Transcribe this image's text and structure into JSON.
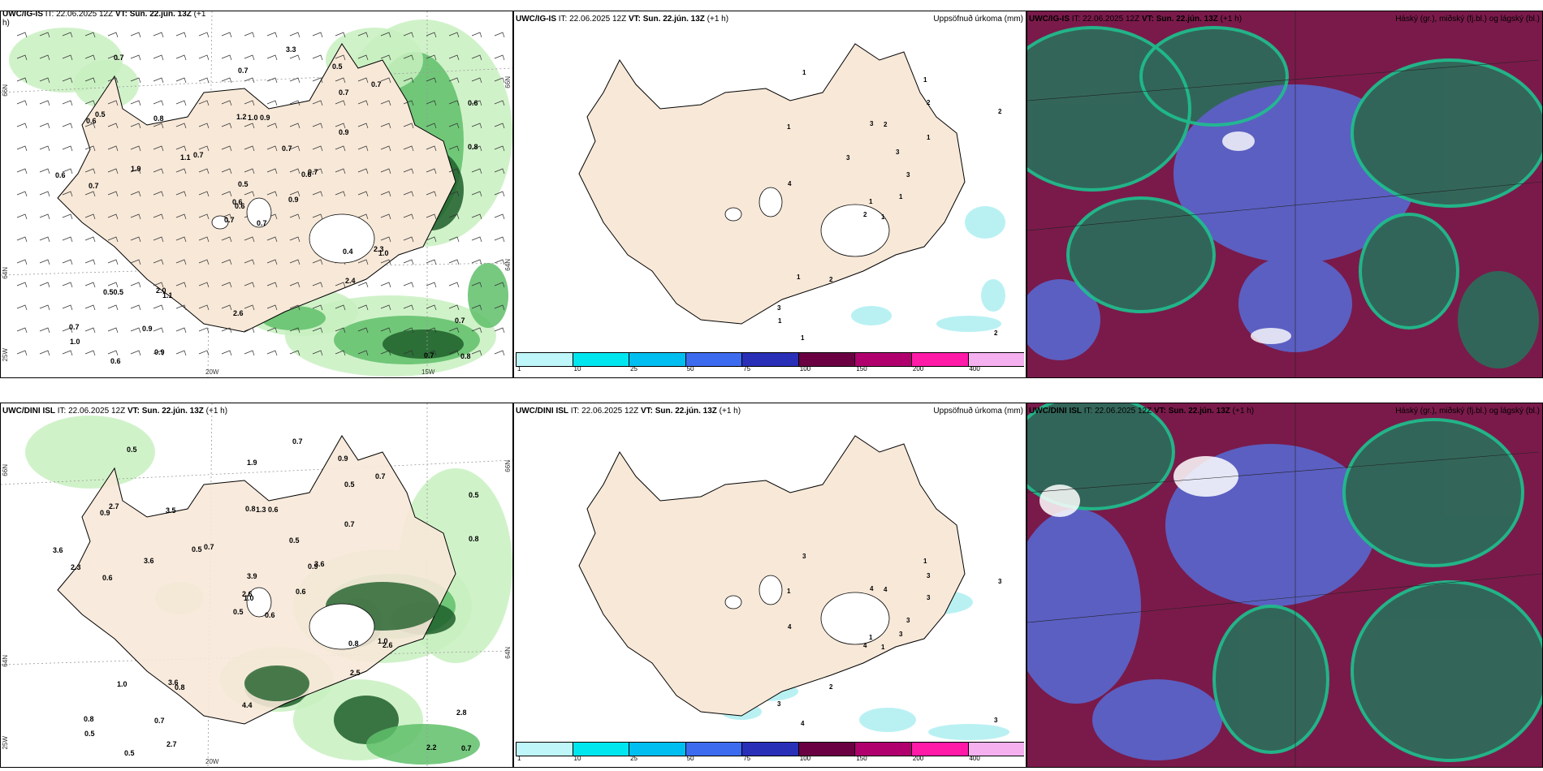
{
  "rows": [
    {
      "model_title": "UWC/IG-IS",
      "left": {
        "title_prefix": "UWC/IG-IS",
        "title_it": "IT: 22.06.2025 12Z",
        "title_vt": "VT: Sun. 22.jún. 13Z",
        "title_lead": "(+1",
        "title_lead2": "h)"
      },
      "middle": {
        "title_prefix": "UWC/IG-IS",
        "title_it": "IT: 22.06.2025 12Z",
        "title_vt": "VT: Sun. 22.jún. 13Z",
        "title_lead": "(+1 h)",
        "right_label": "Uppsöfnuð úrkoma (mm)"
      },
      "right": {
        "title_prefix": "UWC/IG-IS",
        "title_it": "IT: 22.06.2025 12Z",
        "title_vt": "VT: Sun. 22.jún. 13Z",
        "title_lead": "(+1 h)",
        "right_label": "Háský (gr.), miðský (fj.bl.) og lágský (bl.)"
      }
    },
    {
      "model_title": "UWC/DINI ISL",
      "left": {
        "title_prefix": "UWC/DINI ISL",
        "title_it": "IT: 22.06.2025 12Z",
        "title_vt": "VT: Sun. 22.jún. 13Z",
        "title_lead": "(+1 h)"
      },
      "middle": {
        "title_prefix": "UWC/DINI ISL",
        "title_it": "IT: 22.06.2025 12Z",
        "title_vt": "VT: Sun. 22.jún. 13Z",
        "title_lead": "(+1 h)",
        "right_label": "Uppsöfnuð úrkoma (mm)"
      },
      "right": {
        "title_prefix": "UWC/DINI ISL",
        "title_it": "IT: 22.06.2025 12Z",
        "title_vt": "VT: Sun. 22.jún. 13Z",
        "title_lead": "(+1 h)",
        "right_label": "Háský (gr.), miðský (fj.bl.) og lágský (bl.)"
      }
    }
  ],
  "axis_labels": {
    "lat_66": "66N",
    "lat_64": "64N",
    "lon_20": "20W",
    "lon_15": "15W",
    "lon_25": "25W",
    "lat_66_right": "66N",
    "lat_64_right": "64N"
  },
  "colorbar": {
    "ticks": [
      "1",
      "10",
      "25",
      "50",
      "75",
      "100",
      "150",
      "200",
      "400"
    ],
    "colors": [
      "#bff6f9",
      "#00e6ef",
      "#00bff0",
      "#3d6bf0",
      "#2a2fb8",
      "#6a0042",
      "#b0006e",
      "#ff1aa8",
      "#f5b0f0"
    ]
  },
  "colors": {
    "land": "#f7e8d8",
    "precip_light": "#c8f0c0",
    "precip_mid": "#5fbf6a",
    "precip_dark": "#1f5f2a",
    "accum": "#b9f1f3",
    "cloud_high": "#2f6a5a",
    "cloud_mid": "#5a63c8",
    "cloud_low": "#7a1a4a",
    "cloud_edge": "#1ec08e"
  },
  "map_labels_top_left": [
    "0.7",
    "0.6",
    "0.6",
    "0.7",
    "0.6",
    "1.1",
    "0.5",
    "0.9",
    "0.7",
    "0.9",
    "0.7",
    "0.8",
    "0.7",
    "0.6",
    "0.7",
    "0.9",
    "0.6",
    "1.2",
    "0.7",
    "0.50.5",
    "0.7",
    "1.0",
    "0.9",
    "1.0",
    "0.7",
    "1.0",
    "0.5",
    "0.7",
    "0.6",
    "0.4",
    "0.8",
    "0.6",
    "2.6",
    "0.5",
    "0.8",
    "0.7",
    "2.0",
    "0.7",
    "0.7",
    "2.3",
    "3.3",
    "1.1",
    "1.9",
    "2.4",
    "0.9"
  ],
  "map_labels_bottom_left": [
    "0.6",
    "0.9",
    "1.0",
    "0.8",
    "0.9",
    "0.8",
    "0.9",
    "0.6",
    "0.5",
    "0.6",
    "0.5",
    "0.7",
    "0.6",
    "0.5",
    "0.5",
    "0.7",
    "0.5",
    "0.8",
    "0.5",
    "1.0",
    "0.7",
    "0.5",
    "0.7",
    "1.3",
    "3.6",
    "2.6",
    "2.7",
    "1.9",
    "2.3",
    "0.8",
    "0.8",
    "2.6",
    "4.4",
    "3.9",
    "3.5",
    "0.7",
    "3.6",
    "2.2",
    "2.8",
    "1.0",
    "0.7",
    "0.5",
    "3.6",
    "2.5",
    "2.7",
    "3.6"
  ],
  "accum_labels_top": [
    "1",
    "1",
    "1",
    "3",
    "3",
    "2",
    "1",
    "2",
    "2",
    "1",
    "1",
    "2",
    "4",
    "2",
    "2",
    "1",
    "1",
    "3",
    "3",
    "1",
    "3",
    "1"
  ],
  "accum_labels_bottom": [
    "1",
    "1",
    "1",
    "3",
    "3",
    "2",
    "1",
    "4",
    "3",
    "3",
    "3",
    "3",
    "4",
    "3",
    "4",
    "3",
    "4",
    "4"
  ]
}
